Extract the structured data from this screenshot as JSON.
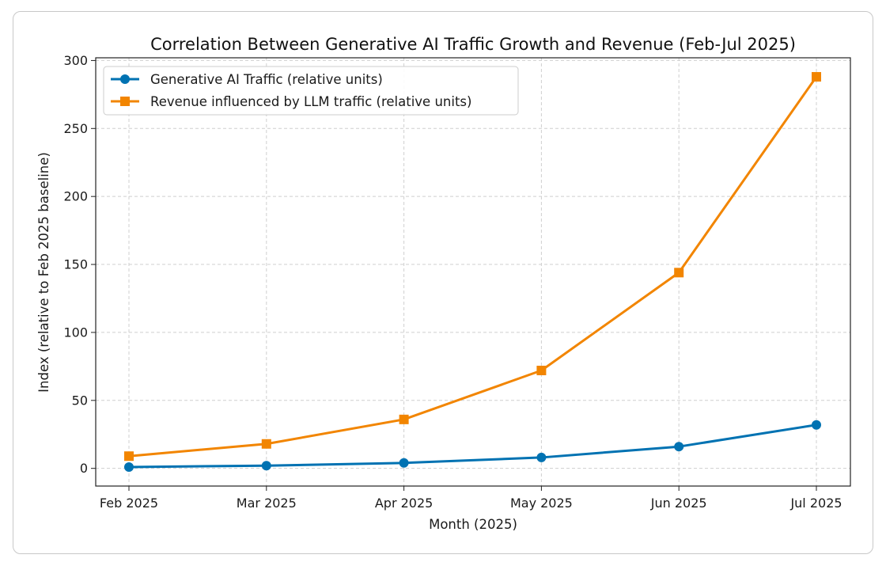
{
  "chart_data": {
    "type": "line",
    "title": "Correlation Between Generative AI Traffic Growth and Revenue (Feb-Jul 2025)",
    "xlabel": "Month (2025)",
    "ylabel": "Index (relative to Feb 2025 baseline)",
    "categories": [
      "Feb 2025",
      "Mar 2025",
      "Apr 2025",
      "May 2025",
      "Jun 2025",
      "Jul 2025"
    ],
    "ylim": [
      -13,
      302
    ],
    "yticks": [
      0,
      50,
      100,
      150,
      200,
      250,
      300
    ],
    "grid": true,
    "legend_position": "top-left",
    "series": [
      {
        "name": "Generative AI Traffic (relative units)",
        "values": [
          1,
          2,
          4,
          8,
          16,
          32
        ],
        "color": "#0072b2",
        "marker": "circle"
      },
      {
        "name": "Revenue influenced by LLM traffic (relative units)",
        "values": [
          9,
          18,
          36,
          72,
          144,
          288
        ],
        "color": "#f28500",
        "marker": "square"
      }
    ]
  }
}
